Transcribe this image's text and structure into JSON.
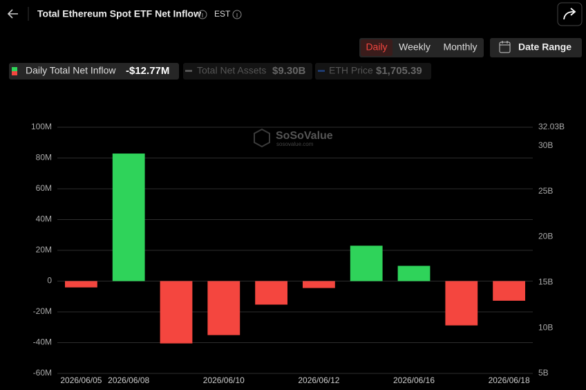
{
  "header": {
    "title": "Total Ethereum Spot ETF Net Inflow",
    "timezone": "EST"
  },
  "controls": {
    "periods": [
      "Daily",
      "Weekly",
      "Monthly"
    ],
    "active": "Daily",
    "date_range": "Date Range"
  },
  "legend": {
    "items": [
      {
        "label": "Daily Total Net Inflow",
        "value": "-$12.77M"
      },
      {
        "label": "Total Net Assets",
        "value": "$9.30B"
      },
      {
        "label": "ETH Price",
        "value": "$1,705.39"
      }
    ]
  },
  "watermark": {
    "name": "SoSoValue",
    "site": "sosovalue.com"
  },
  "chart_data": {
    "type": "bar",
    "categories": [
      "2026/06/05",
      "2026/06/08",
      null,
      "2026/06/10",
      null,
      "2026/06/12",
      null,
      "2026/06/16",
      null,
      "2026/06/18"
    ],
    "values": [
      -4.1,
      82.9,
      -40.5,
      -35.1,
      -15.3,
      -4.5,
      23.0,
      9.9,
      -28.8,
      -12.77
    ],
    "positive_color": "#2fd35a",
    "negative_color": "#f4463f",
    "ylim": [
      -60,
      100
    ],
    "yticks": [
      {
        "value": -60,
        "label": "-60M"
      },
      {
        "value": -40,
        "label": "-40M"
      },
      {
        "value": -20,
        "label": "-20M"
      },
      0,
      {
        "value": 20,
        "label": "20M"
      },
      {
        "value": 40,
        "label": "40M"
      },
      {
        "value": 60,
        "label": "60M"
      },
      {
        "value": 80,
        "label": "80M"
      },
      {
        "value": 100,
        "label": "100M"
      }
    ],
    "y2lim": [
      5,
      32.03
    ],
    "y2ticks": [
      {
        "value": 5,
        "label": "5B"
      },
      {
        "value": 10,
        "label": "10B"
      },
      {
        "value": 15,
        "label": "15B"
      },
      {
        "value": 20,
        "label": "20B"
      },
      {
        "value": 25,
        "label": "25B"
      },
      {
        "value": 30,
        "label": "30B"
      },
      {
        "value": 32.03,
        "label": "32.03B"
      }
    ],
    "grid": true
  }
}
